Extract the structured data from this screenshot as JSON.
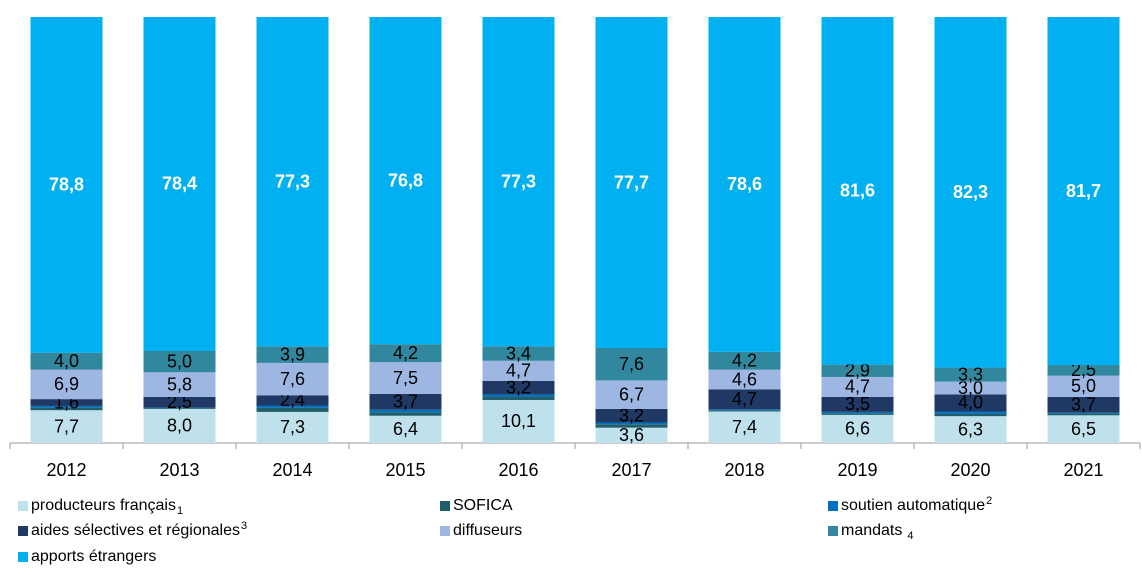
{
  "chart_data": {
    "type": "stacked_bar",
    "categories": [
      "2012",
      "2013",
      "2014",
      "2015",
      "2016",
      "2017",
      "2018",
      "2019",
      "2020",
      "2021"
    ],
    "ylim": [
      0,
      100
    ],
    "series": [
      {
        "name": "producteurs français",
        "footnote": "1",
        "color": "#bfe1ec",
        "values": [
          7.7,
          8.0,
          7.3,
          6.4,
          10.1,
          3.6,
          7.4,
          6.6,
          6.3,
          6.5
        ],
        "value_labels": [
          "7,7",
          "8,0",
          "7,3",
          "6,4",
          "10,1",
          "3,6",
          "7,4",
          "6,6",
          "6,3",
          "6,5"
        ]
      },
      {
        "name": "SOFICA",
        "color": "#1f5e6a",
        "values": [
          0.6,
          0.2,
          1.0,
          0.8,
          0.8,
          0.8,
          0.3,
          0.4,
          0.6,
          0.4
        ]
      },
      {
        "name": "soutien automatique",
        "footnote": "2",
        "color": "#0070c0",
        "values": [
          0.4,
          0.1,
          0.5,
          0.6,
          0.5,
          0.4,
          0.2,
          0.3,
          0.5,
          0.2
        ]
      },
      {
        "name": "aides sélectives et régionales",
        "footnote": "3",
        "color": "#1f3864",
        "values": [
          1.6,
          2.5,
          2.4,
          3.7,
          3.2,
          3.2,
          4.7,
          3.5,
          4.0,
          3.7
        ],
        "value_labels": [
          "1,6",
          "2,5",
          "2,4",
          "3,7",
          "3,2",
          "3,2",
          "4,7",
          "3,5",
          "4,0",
          "3,7"
        ]
      },
      {
        "name": "diffuseurs",
        "color": "#9db6e2",
        "values": [
          6.9,
          5.8,
          7.6,
          7.5,
          4.7,
          6.7,
          4.6,
          4.7,
          3.0,
          5.0
        ],
        "value_labels": [
          "6,9",
          "5,8",
          "7,6",
          "7,5",
          "4,7",
          "6,7",
          "4,6",
          "4,7",
          "3,0",
          "5,0"
        ]
      },
      {
        "name": "mandats",
        "footnote": "4",
        "color": "#31889e",
        "values": [
          4.0,
          5.0,
          3.9,
          4.2,
          3.4,
          7.6,
          4.2,
          2.9,
          3.3,
          2.5
        ],
        "value_labels": [
          "4,0",
          "5,0",
          "3,9",
          "4,2",
          "3,4",
          "7,6",
          "4,2",
          "2,9",
          "3,3",
          "2,5"
        ]
      },
      {
        "name": "apports étrangers",
        "color": "#00b0f0",
        "values": [
          78.8,
          78.4,
          77.3,
          76.8,
          77.3,
          77.7,
          78.6,
          81.6,
          82.3,
          81.7
        ],
        "value_labels": [
          "78,8",
          "78,4",
          "77,3",
          "76,8",
          "77,3",
          "77,7",
          "78,6",
          "81,6",
          "82,3",
          "81,7"
        ]
      }
    ]
  }
}
